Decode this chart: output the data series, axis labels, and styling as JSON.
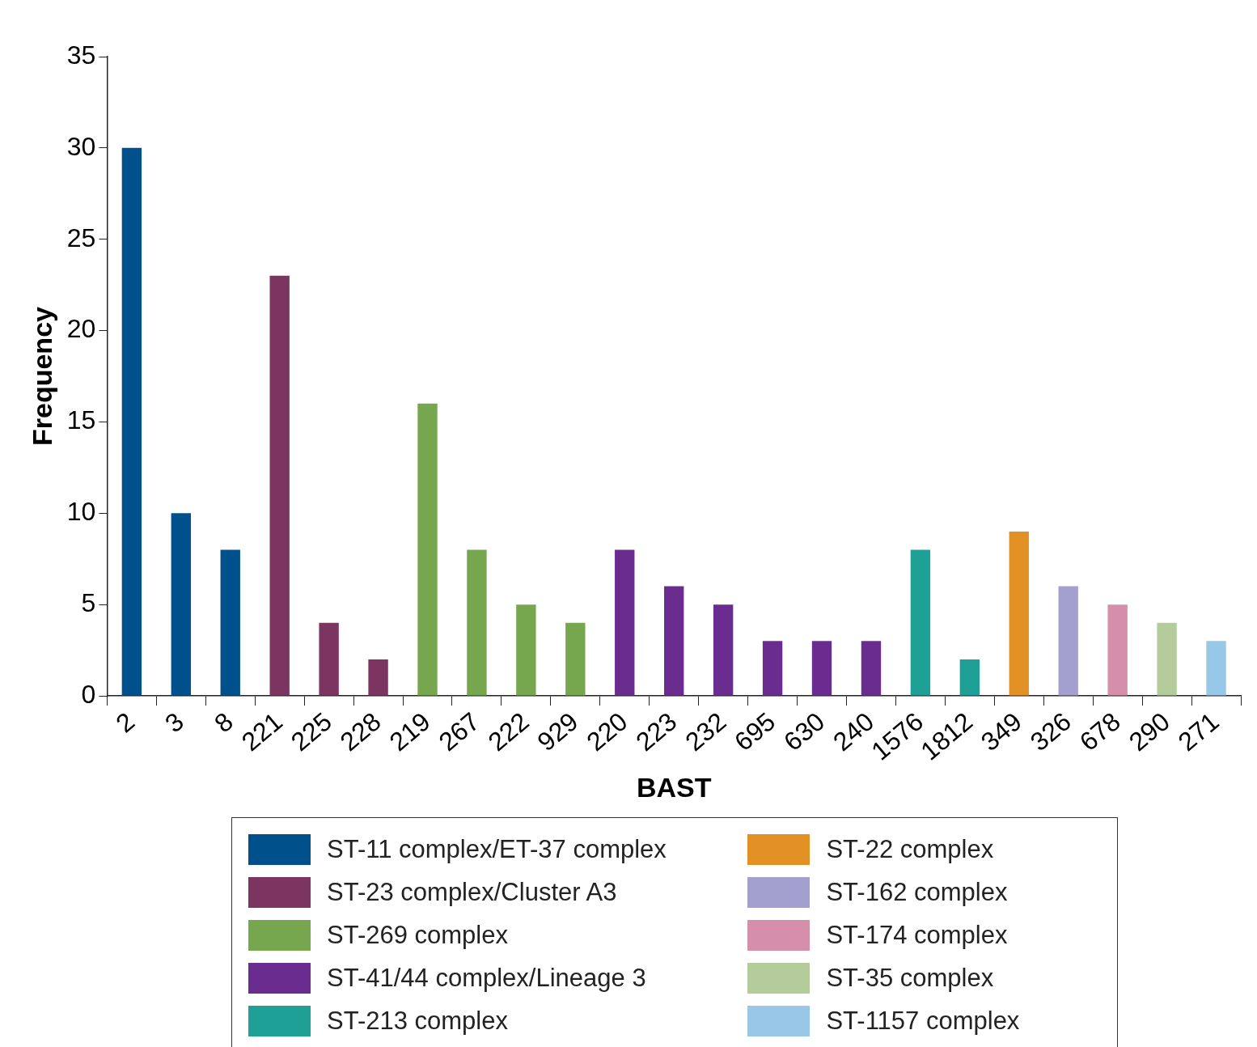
{
  "chart_data": {
    "type": "bar",
    "xlabel": "BAST",
    "ylabel": "Frequency",
    "categories": [
      "2",
      "3",
      "8",
      "221",
      "225",
      "228",
      "219",
      "267",
      "222",
      "929",
      "220",
      "223",
      "232",
      "695",
      "630",
      "240",
      "1576",
      "1812",
      "349",
      "326",
      "678",
      "290",
      "271"
    ],
    "series": [
      {
        "name": "ST-11 complex/ET-37 complex",
        "color": "#00508c",
        "values": [
          30,
          10,
          8,
          null,
          null,
          null,
          null,
          null,
          null,
          null,
          null,
          null,
          null,
          null,
          null,
          null,
          null,
          null,
          null,
          null,
          null,
          null,
          null
        ]
      },
      {
        "name": "ST-23 complex/Cluster A3",
        "color": "#7b3560",
        "values": [
          null,
          null,
          null,
          23,
          4,
          2,
          null,
          null,
          null,
          null,
          null,
          null,
          null,
          null,
          null,
          null,
          null,
          null,
          null,
          null,
          null,
          null,
          null
        ]
      },
      {
        "name": "ST-269 complex",
        "color": "#76a74f",
        "values": [
          null,
          null,
          null,
          null,
          null,
          null,
          16,
          8,
          5,
          4,
          null,
          null,
          null,
          null,
          null,
          null,
          null,
          null,
          null,
          null,
          null,
          null,
          null
        ]
      },
      {
        "name": "ST-41/44 complex/Lineage 3",
        "color": "#6a2d8f",
        "values": [
          null,
          null,
          null,
          null,
          null,
          null,
          null,
          null,
          null,
          null,
          8,
          6,
          5,
          3,
          3,
          3,
          null,
          null,
          null,
          null,
          null,
          null,
          null
        ]
      },
      {
        "name": "ST-213 complex",
        "color": "#1fa096",
        "values": [
          null,
          null,
          null,
          null,
          null,
          null,
          null,
          null,
          null,
          null,
          null,
          null,
          null,
          null,
          null,
          null,
          8,
          2,
          null,
          null,
          null,
          null,
          null
        ]
      },
      {
        "name": "ST-22 complex",
        "color": "#e39025",
        "values": [
          null,
          null,
          null,
          null,
          null,
          null,
          null,
          null,
          null,
          null,
          null,
          null,
          null,
          null,
          null,
          null,
          null,
          null,
          9,
          null,
          null,
          null,
          null
        ]
      },
      {
        "name": "ST-162 complex",
        "color": "#a39fcf",
        "values": [
          null,
          null,
          null,
          null,
          null,
          null,
          null,
          null,
          null,
          null,
          null,
          null,
          null,
          null,
          null,
          null,
          null,
          null,
          null,
          6,
          null,
          null,
          null
        ]
      },
      {
        "name": "ST-174 complex",
        "color": "#d68fab",
        "values": [
          null,
          null,
          null,
          null,
          null,
          null,
          null,
          null,
          null,
          null,
          null,
          null,
          null,
          null,
          null,
          null,
          null,
          null,
          null,
          null,
          5,
          null,
          null
        ]
      },
      {
        "name": "ST-35 complex",
        "color": "#b4cc9b",
        "values": [
          null,
          null,
          null,
          null,
          null,
          null,
          null,
          null,
          null,
          null,
          null,
          null,
          null,
          null,
          null,
          null,
          null,
          null,
          null,
          null,
          null,
          4,
          null
        ]
      },
      {
        "name": "ST-1157 complex",
        "color": "#98c7e8",
        "values": [
          null,
          null,
          null,
          null,
          null,
          null,
          null,
          null,
          null,
          null,
          null,
          null,
          null,
          null,
          null,
          null,
          null,
          null,
          null,
          null,
          null,
          null,
          3
        ]
      }
    ],
    "ylim": [
      0,
      35
    ],
    "yticks": [
      0,
      5,
      10,
      15,
      20,
      25,
      30,
      35
    ],
    "legend": "bottom"
  }
}
